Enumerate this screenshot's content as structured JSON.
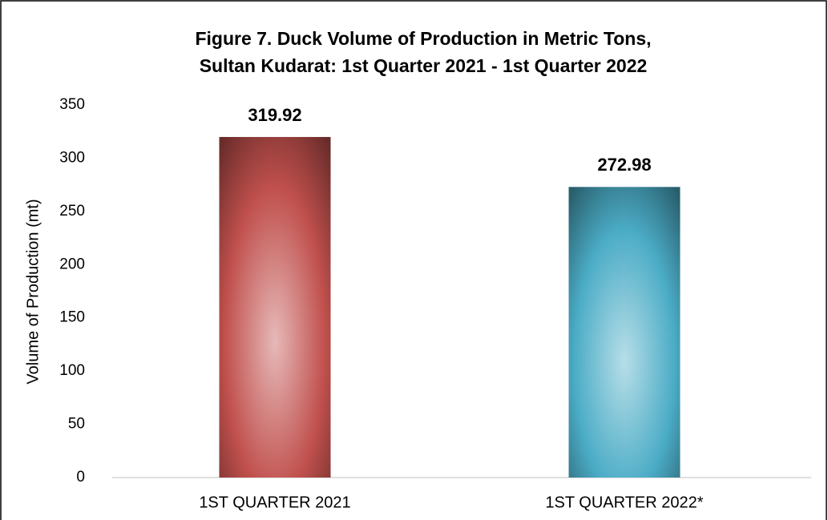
{
  "chart_data": {
    "type": "bar",
    "title": [
      "Figure 7. Duck Volume of Production in Metric Tons,",
      "Sultan Kudarat: 1st Quarter 2021 - 1st Quarter 2022"
    ],
    "y_label": "Volume of Production (mt)",
    "categories": [
      "1ST QUARTER 2021",
      "1ST QUARTER 2022*"
    ],
    "values": [
      319.92,
      272.98
    ],
    "colors": [
      "#c0504d",
      "#4bacc6"
    ],
    "ylim": [
      0,
      350
    ],
    "yticks": [
      0,
      50,
      100,
      150,
      200,
      250,
      300,
      350
    ],
    "grid": false
  }
}
